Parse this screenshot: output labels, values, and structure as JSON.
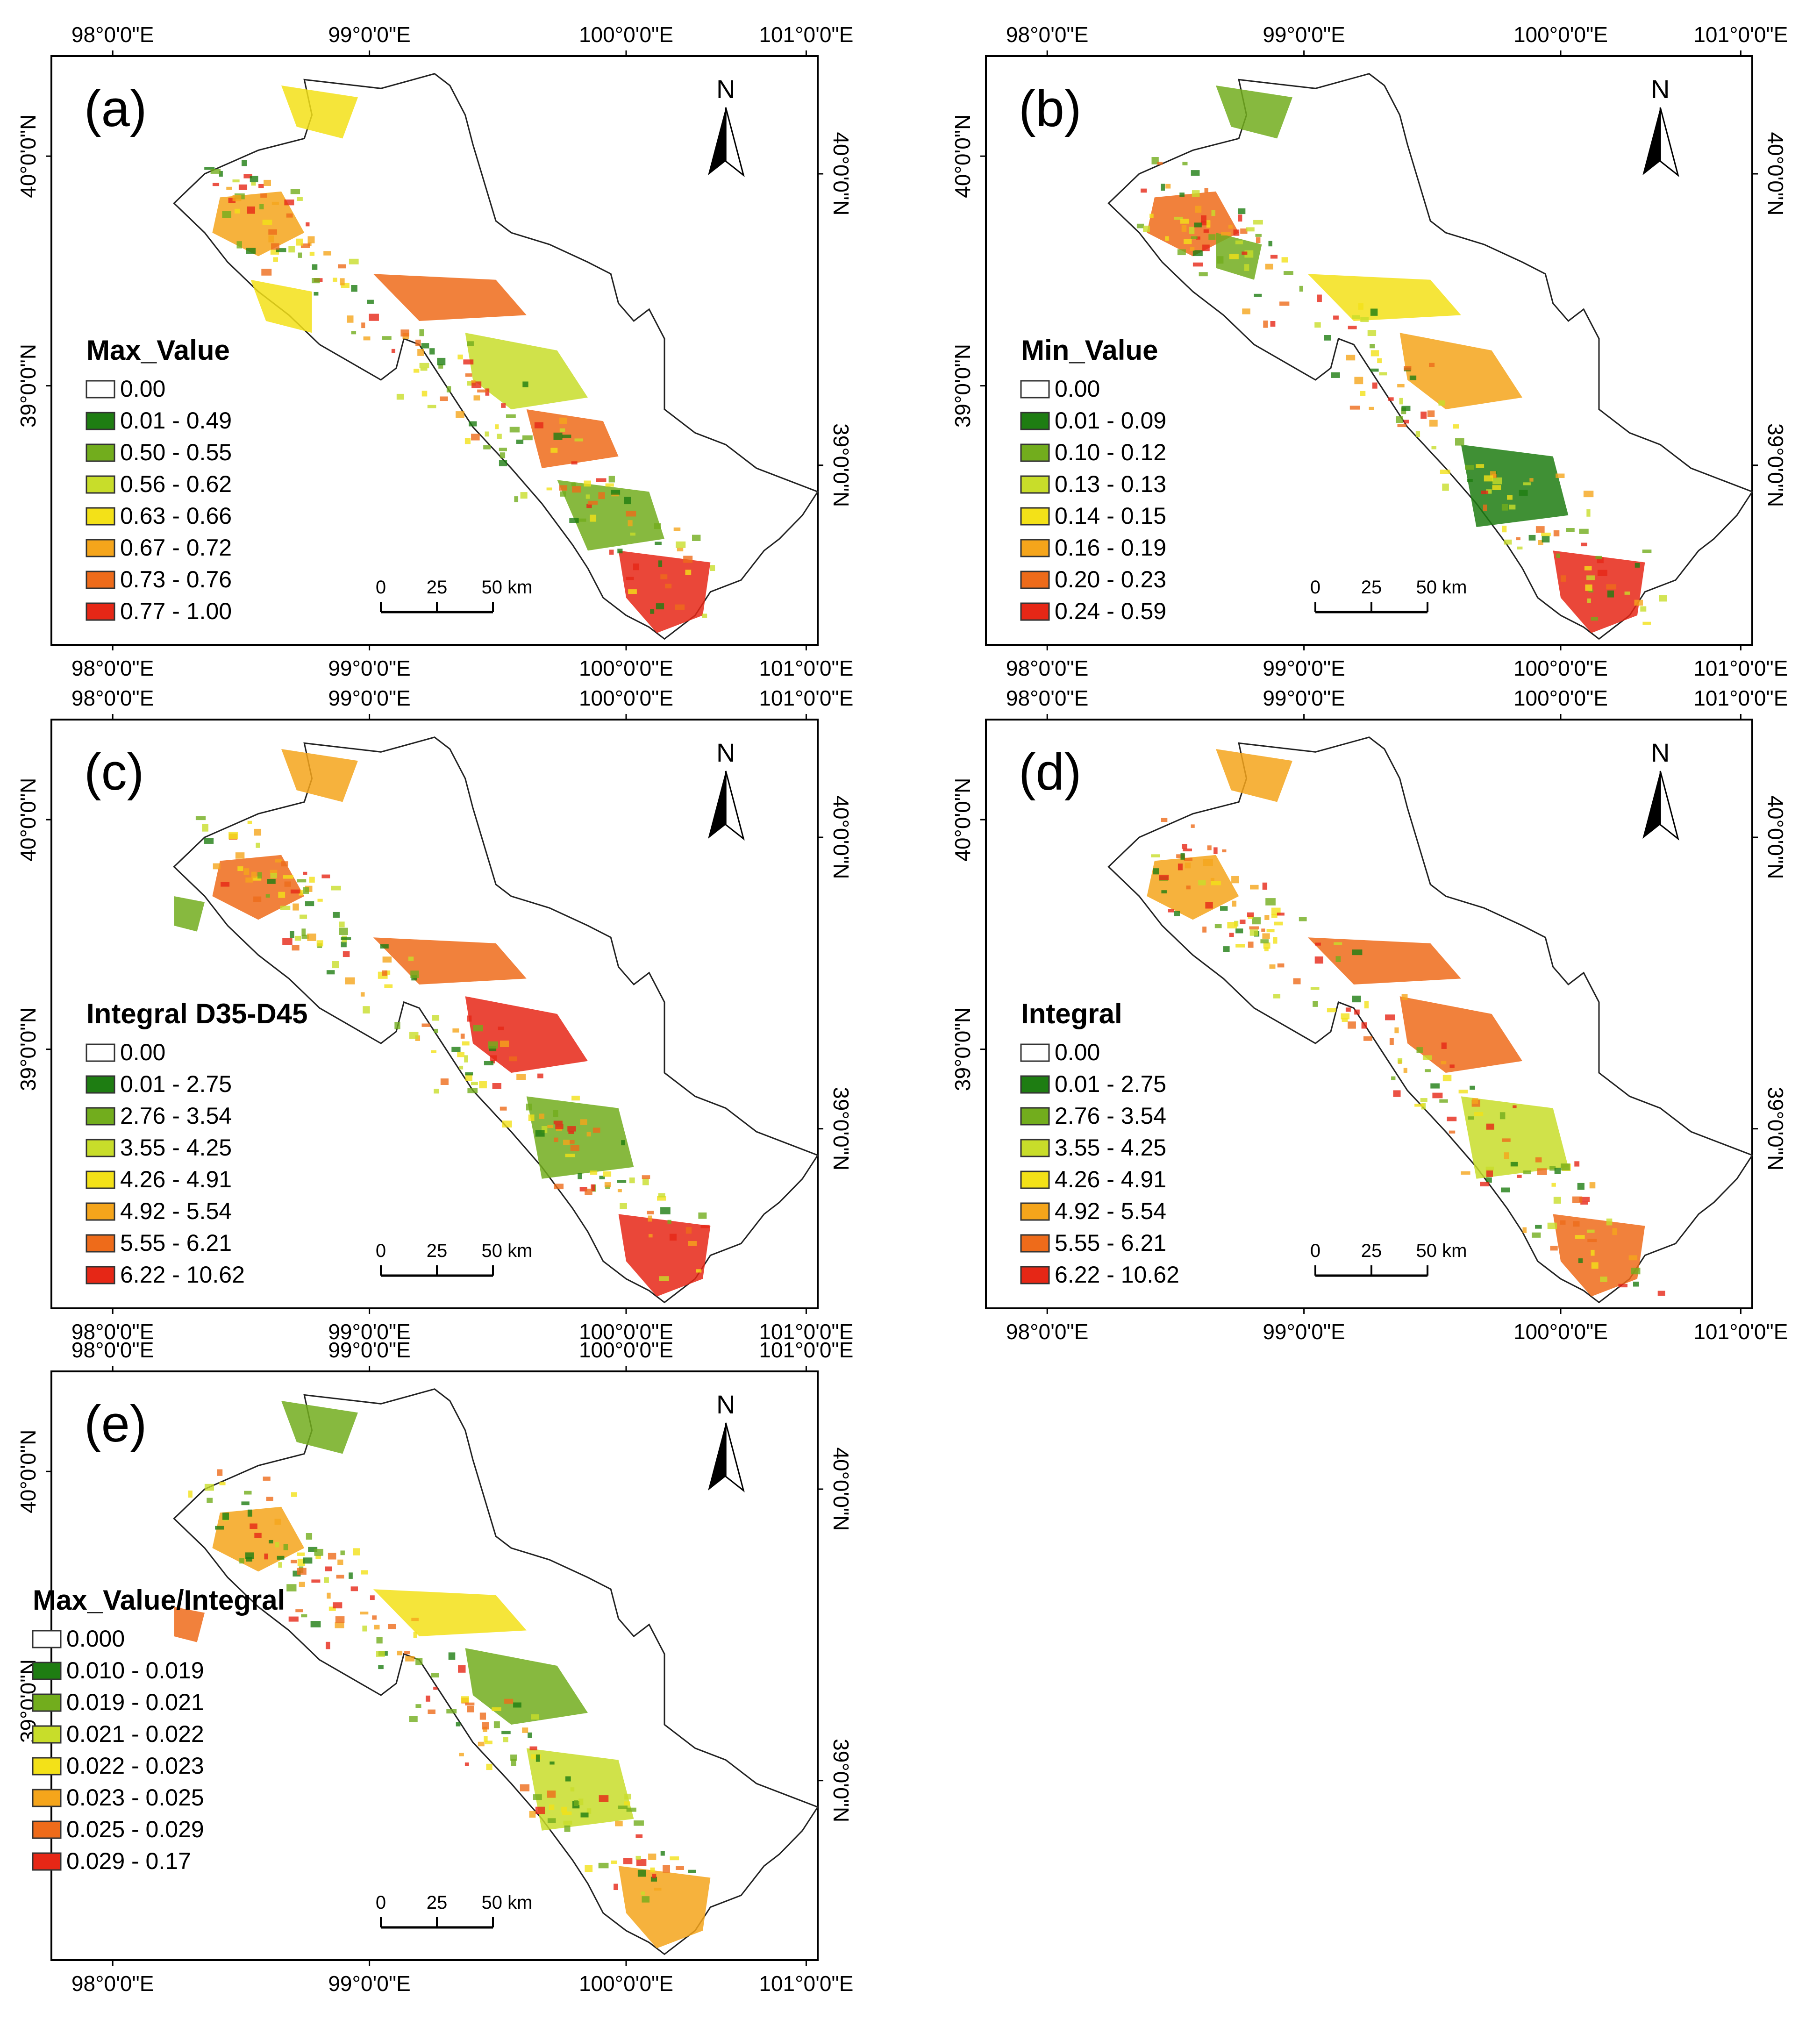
{
  "axis_ticks": {
    "lon": [
      "98°0'0\"E",
      "99°0'0\"E",
      "100°0'0\"E",
      "101°0'0\"E"
    ],
    "lat": [
      "40°0'0\"N",
      "39°0'0\"N"
    ]
  },
  "north_label": "N",
  "scale_bar": [
    "0",
    "25",
    "50 km"
  ],
  "panels": [
    {
      "id": "a",
      "label": "(a)",
      "legend_title": "Max_Value",
      "legend_items": [
        {
          "label": "0.00",
          "color": "#ffffff"
        },
        {
          "label": "0.01 - 0.49",
          "color": "#1e7d12"
        },
        {
          "label": "0.50 - 0.55",
          "color": "#72ad1d"
        },
        {
          "label": "0.56 - 0.62",
          "color": "#c8dd2a"
        },
        {
          "label": "0.63 - 0.66",
          "color": "#f3e118"
        },
        {
          "label": "0.67 - 0.72",
          "color": "#f5a51b"
        },
        {
          "label": "0.73 - 0.76",
          "color": "#ee6b1a"
        },
        {
          "label": "0.77 - 1.00",
          "color": "#e62716"
        }
      ]
    },
    {
      "id": "b",
      "label": "(b)",
      "legend_title": "Min_Value",
      "legend_items": [
        {
          "label": "0.00",
          "color": "#ffffff"
        },
        {
          "label": "0.01 - 0.09",
          "color": "#1e7d12"
        },
        {
          "label": "0.10 - 0.12",
          "color": "#72ad1d"
        },
        {
          "label": "0.13 - 0.13",
          "color": "#c8dd2a"
        },
        {
          "label": "0.14 - 0.15",
          "color": "#f3e118"
        },
        {
          "label": "0.16 - 0.19",
          "color": "#f5a51b"
        },
        {
          "label": "0.20 - 0.23",
          "color": "#ee6b1a"
        },
        {
          "label": "0.24 - 0.59",
          "color": "#e62716"
        }
      ]
    },
    {
      "id": "c",
      "label": "(c)",
      "legend_title": "Integral D35-D45",
      "legend_items": [
        {
          "label": "0.00",
          "color": "#ffffff"
        },
        {
          "label": "0.01 - 2.75",
          "color": "#1e7d12"
        },
        {
          "label": "2.76 - 3.54",
          "color": "#72ad1d"
        },
        {
          "label": "3.55 - 4.25",
          "color": "#c8dd2a"
        },
        {
          "label": "4.26 - 4.91",
          "color": "#f3e118"
        },
        {
          "label": "4.92 - 5.54",
          "color": "#f5a51b"
        },
        {
          "label": "5.55 - 6.21",
          "color": "#ee6b1a"
        },
        {
          "label": "6.22 - 10.62",
          "color": "#e62716"
        }
      ]
    },
    {
      "id": "d",
      "label": "(d)",
      "legend_title": "Integral",
      "legend_items": [
        {
          "label": "0.00",
          "color": "#ffffff"
        },
        {
          "label": "0.01 - 2.75",
          "color": "#1e7d12"
        },
        {
          "label": "2.76 - 3.54",
          "color": "#72ad1d"
        },
        {
          "label": "3.55 - 4.25",
          "color": "#c8dd2a"
        },
        {
          "label": "4.26 - 4.91",
          "color": "#f3e118"
        },
        {
          "label": "4.92 - 5.54",
          "color": "#f5a51b"
        },
        {
          "label": "5.55 - 6.21",
          "color": "#ee6b1a"
        },
        {
          "label": "6.22 - 10.62",
          "color": "#e62716"
        }
      ]
    },
    {
      "id": "e",
      "label": "(e)",
      "legend_title": "Max_Value/Integral",
      "legend_items": [
        {
          "label": "0.000",
          "color": "#ffffff"
        },
        {
          "label": "0.010 - 0.019",
          "color": "#1e7d12"
        },
        {
          "label": "0.019 - 0.021",
          "color": "#72ad1d"
        },
        {
          "label": "0.021 - 0.022",
          "color": "#c8dd2a"
        },
        {
          "label": "0.022 - 0.023",
          "color": "#f3e118"
        },
        {
          "label": "0.023 - 0.025",
          "color": "#f5a51b"
        },
        {
          "label": "0.025 - 0.029",
          "color": "#ee6b1a"
        },
        {
          "label": "0.029 - 0.17",
          "color": "#e62716"
        }
      ]
    }
  ]
}
